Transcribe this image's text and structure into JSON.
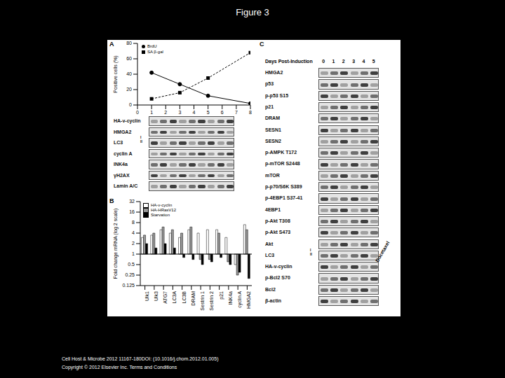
{
  "title": "Figure 3",
  "footer": [
    "Cell Host & Microbe 2012 11167-180DOI: (10.1016/j.chom.2012.01.005)",
    "Copyright © 2012 Elsevier Inc. Terms and Conditions"
  ],
  "panel_labels": [
    "A",
    "B",
    "C"
  ],
  "chart_data": [
    {
      "type": "line",
      "ylabel": "Positive cells (%)",
      "xlim": [
        0,
        8
      ],
      "xticks": [
        0,
        1,
        2,
        3,
        4,
        5,
        6,
        7,
        8
      ],
      "ylim": [
        0,
        80
      ],
      "yticks": [
        0,
        20,
        40,
        60,
        80
      ],
      "legend": "top-left",
      "series": [
        {
          "name": "BrdU",
          "color": "#000000",
          "marker": "circle",
          "line_style": "solid",
          "x": [
            1,
            3,
            5,
            8
          ],
          "values": [
            42,
            27,
            12,
            2
          ]
        },
        {
          "name": "SA β-gal",
          "color": "#000000",
          "marker": "square",
          "line_style": "dashed",
          "x": [
            1,
            3,
            5,
            8
          ],
          "values": [
            8,
            16,
            35,
            68
          ]
        }
      ]
    },
    {
      "type": "bar",
      "ylabel": "Fold change mRNA (log 2 scale)",
      "log": "y",
      "categories": [
        "Ulk1",
        "Ulk3",
        "ATG7",
        "LC3A",
        "LC3B",
        "DRAM",
        "Sestrin 1",
        "Sestrin 2",
        "p21",
        "INK4a",
        "cyclin A",
        "HMGA2"
      ],
      "ylim": [
        0.125,
        32
      ],
      "yticks": [
        0.125,
        0.25,
        0.5,
        1,
        2,
        4,
        8,
        16,
        32
      ],
      "baseline": 1,
      "legend": "top-left",
      "series": [
        {
          "name": "HA-v-cyclin",
          "color": "#ffffff",
          "values": [
            3,
            3.5,
            5,
            4,
            3,
            5,
            4,
            5,
            5,
            3,
            0.5,
            7
          ]
        },
        {
          "name": "HA-HRasV12",
          "color": "#999999",
          "values": [
            3.5,
            4,
            6,
            5,
            4,
            6,
            0.7,
            0.7,
            4,
            0.6,
            0.25,
            5
          ]
        },
        {
          "name": "Starvation",
          "color": "#000000",
          "values": [
            2,
            1.5,
            2,
            1.5,
            0.8,
            0.7,
            0.5,
            0.6,
            0.8,
            0.5,
            0.3,
            0.2
          ]
        }
      ]
    }
  ],
  "blots": {
    "A": {
      "rows": [
        {
          "label": "HA-v-cyclin"
        },
        {
          "label": "HMGA2"
        },
        {
          "label": "LC3",
          "sub": [
            "I",
            "II"
          ]
        },
        {
          "label": "cyclin A"
        },
        {
          "label": "INK4a"
        },
        {
          "label": "γH2AX"
        },
        {
          "label": "Lamin A/C"
        }
      ]
    },
    "C": {
      "header": "Days Post-Induction",
      "lanes": [
        "0",
        "1",
        "2",
        "3",
        "4",
        "5"
      ],
      "annotation": "Docetaxel",
      "rows": [
        {
          "label": "HMGA2"
        },
        {
          "label": "p53"
        },
        {
          "label": "p-p53 S15"
        },
        {
          "label": "p21"
        },
        {
          "label": "DRAM"
        },
        {
          "label": "SESN1"
        },
        {
          "label": "SESN2"
        },
        {
          "label": "p-AMPK T172"
        },
        {
          "label": "p-mTOR S2448"
        },
        {
          "label": "mTOR"
        },
        {
          "label": "p-p70/S6K S389"
        },
        {
          "label": "p-4EBP1 S37-41"
        },
        {
          "label": "4EBP1"
        },
        {
          "label": "p-Akt T308"
        },
        {
          "label": "p-Akt S473"
        },
        {
          "label": "Akt"
        },
        {
          "label": "LC3",
          "sub": [
            "I",
            "II"
          ]
        },
        {
          "label": "HA-v-cyclin"
        },
        {
          "label": "p-Bcl2 S70"
        },
        {
          "label": "Bcl2"
        },
        {
          "label": "β-actin"
        }
      ]
    }
  }
}
